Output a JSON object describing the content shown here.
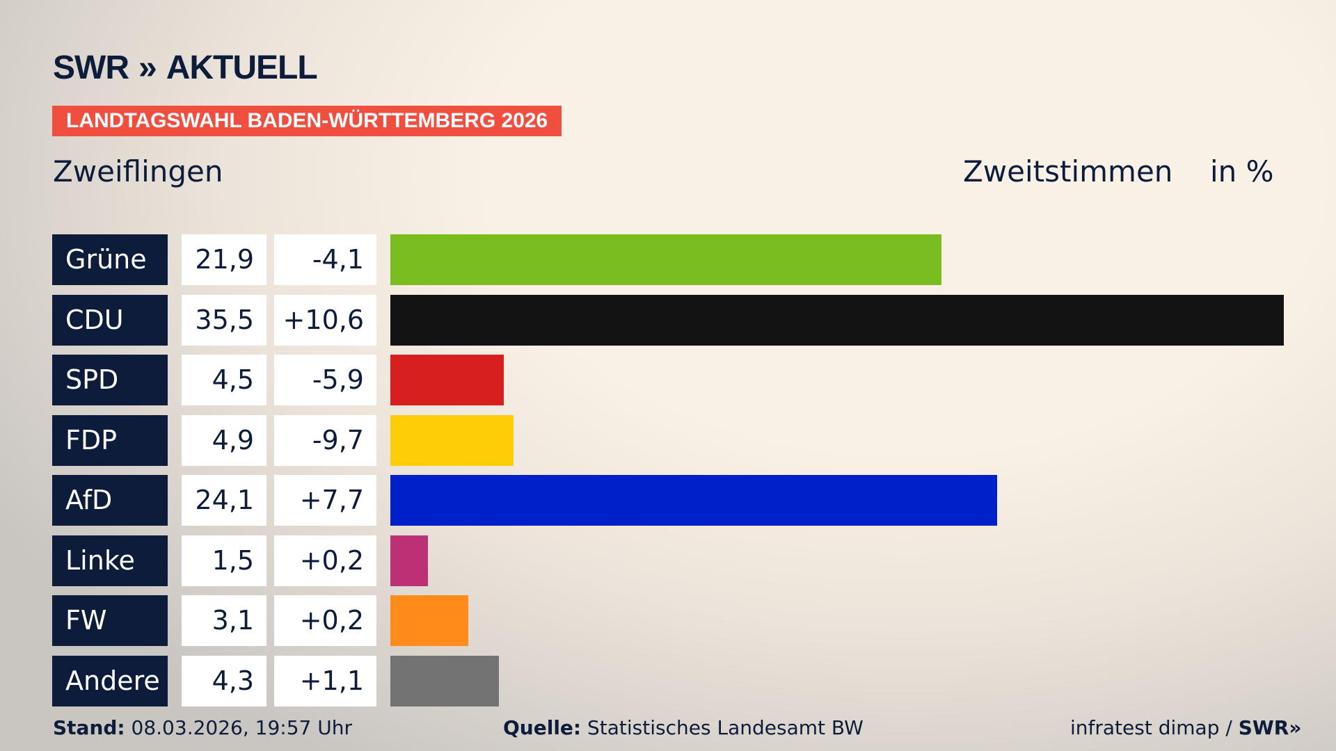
{
  "header": {
    "logo": "SWR",
    "logo_suffix": "AKTUELL",
    "banner": "LANDTAGSWAHL BADEN-WÜRTTEMBERG 2026",
    "place": "Zweiflingen",
    "kind": "Zweitstimmen",
    "unit": "in %"
  },
  "chart_data": {
    "type": "bar",
    "orientation": "horizontal",
    "xlim": [
      0,
      35.5
    ],
    "categories": [
      "Grüne",
      "CDU",
      "SPD",
      "FDP",
      "AfD",
      "Linke",
      "FW",
      "Andere"
    ],
    "values": [
      21.9,
      35.5,
      4.5,
      4.9,
      24.1,
      1.5,
      3.1,
      4.3
    ],
    "value_labels": [
      "21,9",
      "35,5",
      "4,5",
      "4,9",
      "24,1",
      "1,5",
      "3,1",
      "4,3"
    ],
    "diff_labels": [
      "-4,1",
      "+10,6",
      "-5,9",
      "-9,7",
      "+7,7",
      "+0,2",
      "+0,2",
      "+1,1"
    ],
    "colors": [
      "#7abd1e",
      "#131313",
      "#d71f1d",
      "#ffcc08",
      "#0021c9",
      "#bd3075",
      "#ff8c1a",
      "#737373"
    ]
  },
  "footer": {
    "stand_label": "Stand:",
    "stand_value": "08.03.2026, 19:57 Uhr",
    "source_label": "Quelle:",
    "source_value": "Statistisches Landesamt BW",
    "credit": "infratest dimap /",
    "credit_logo": "SWR"
  }
}
